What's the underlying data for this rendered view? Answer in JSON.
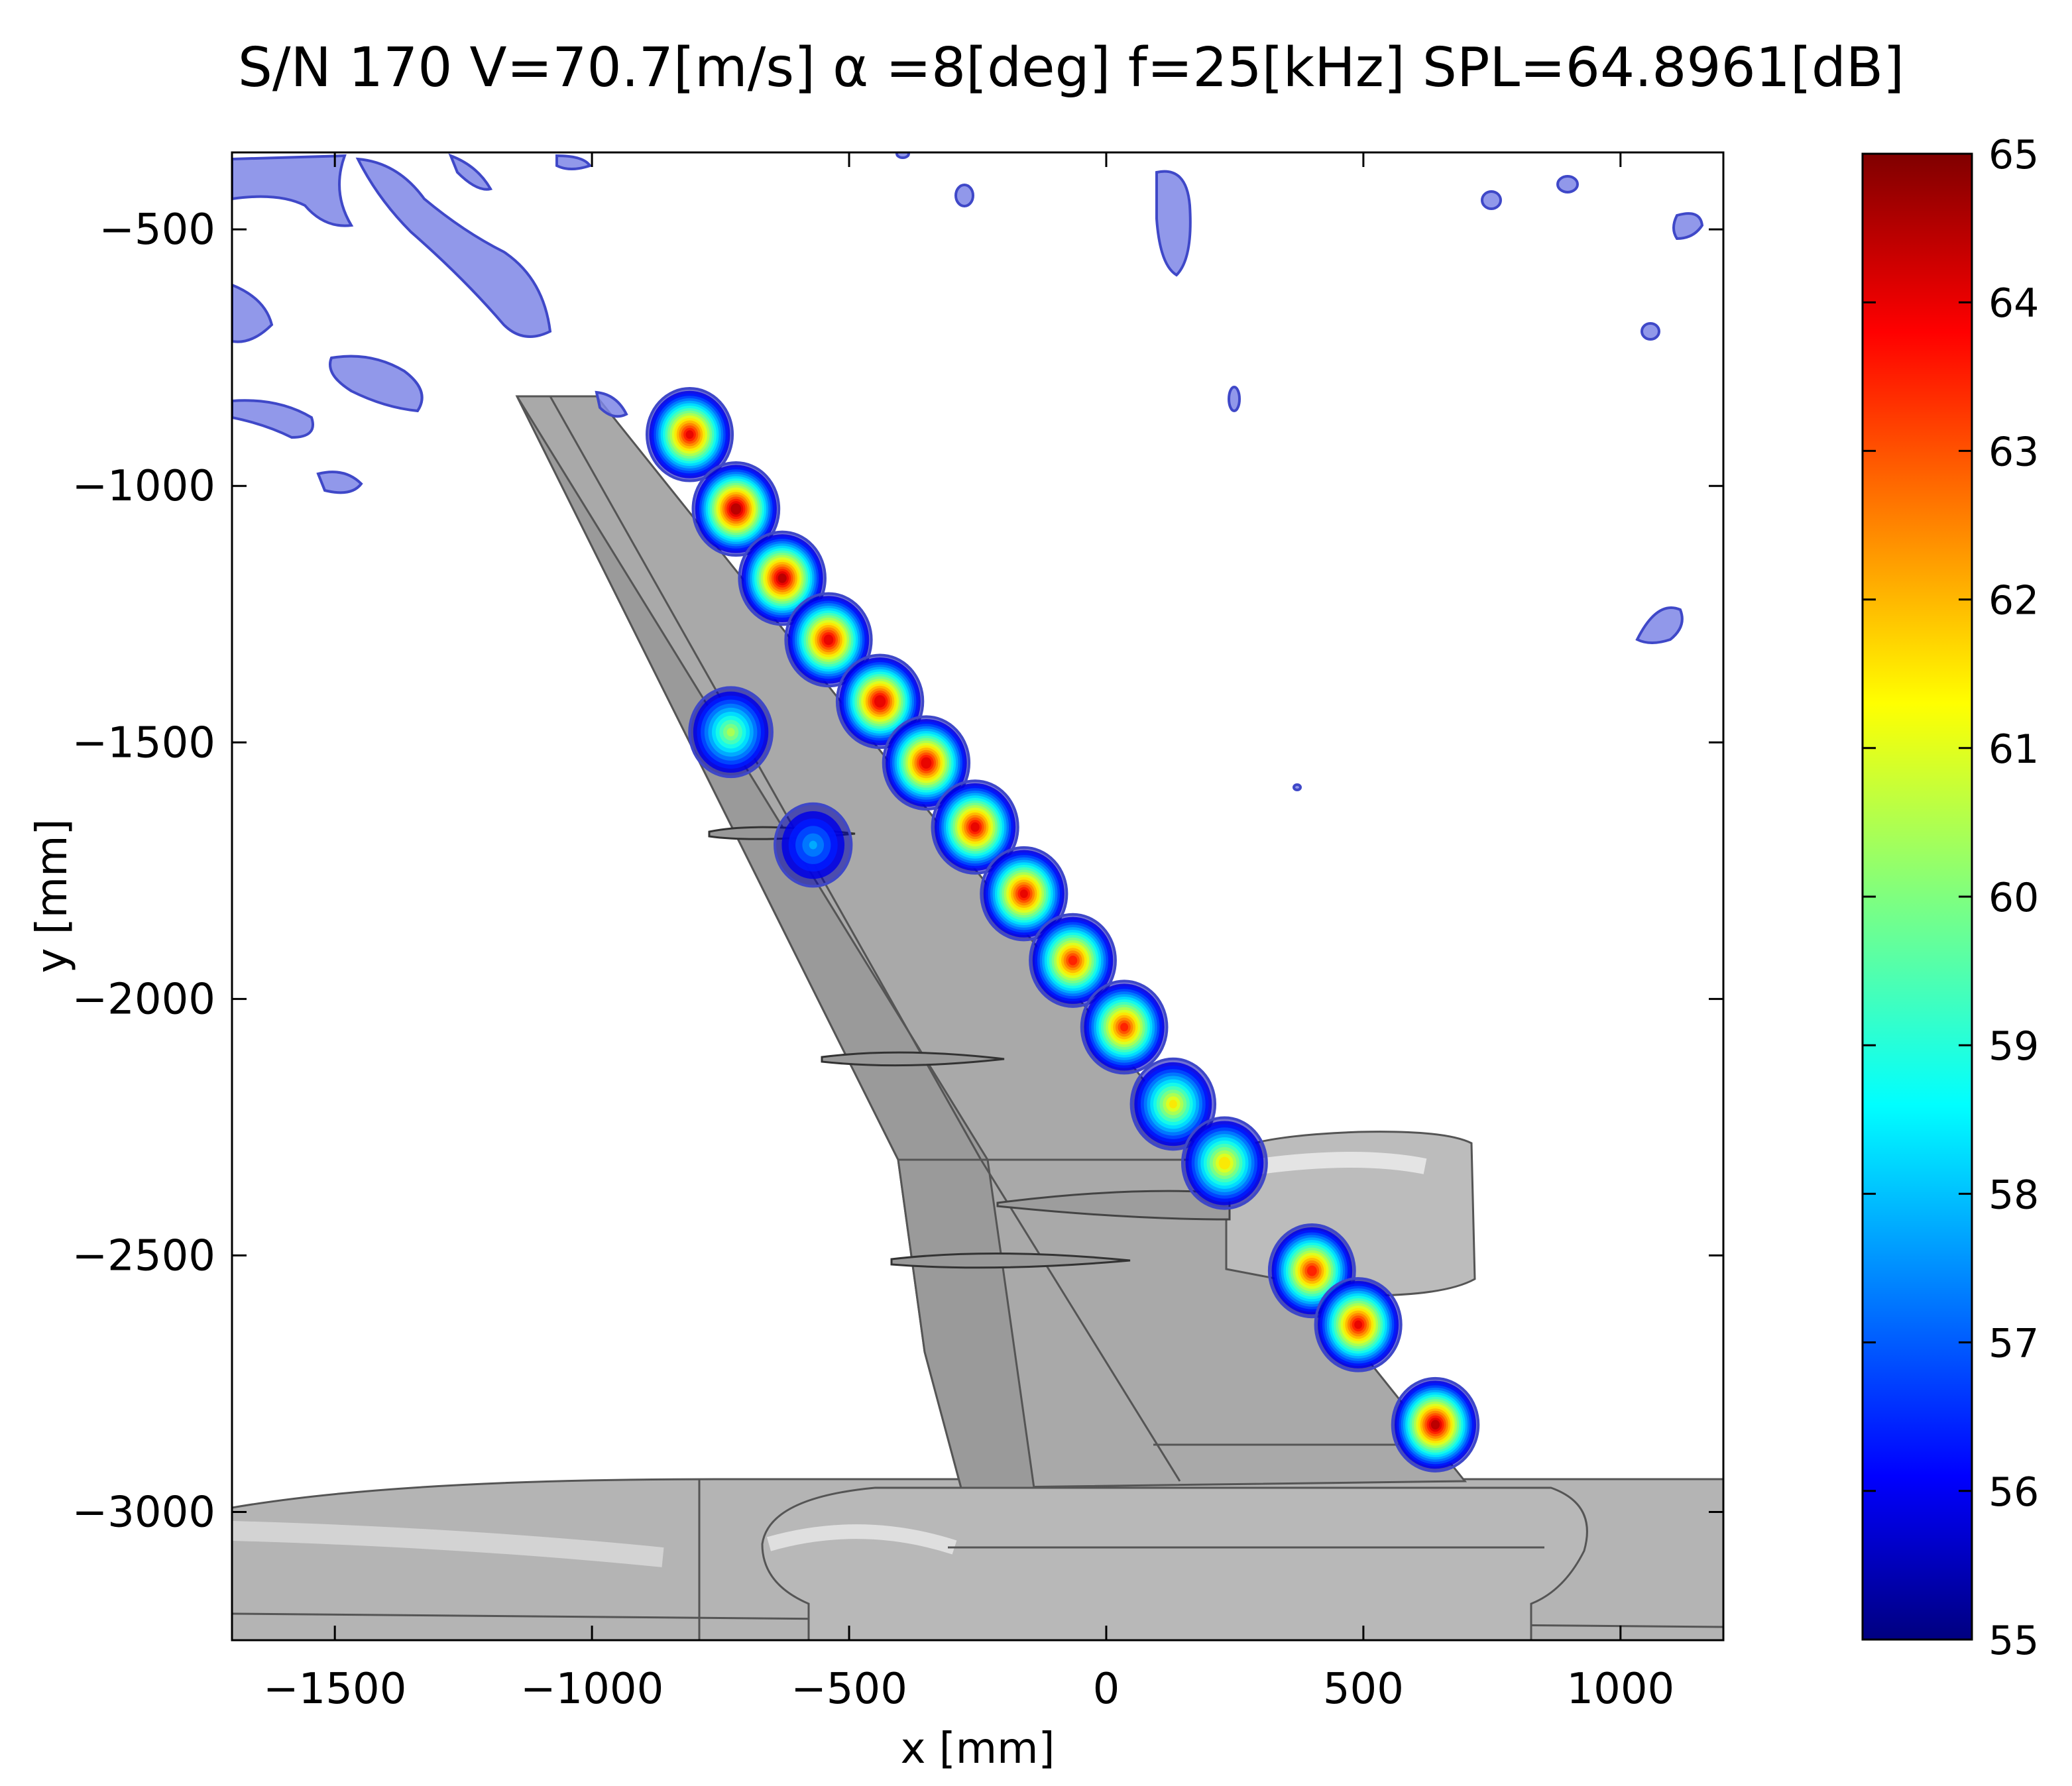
{
  "chart_data": {
    "type": "heatmap",
    "title": "S/N 170  V=70.7[m/s]   α =8[deg]  f=25[kHz]     SPL=64.8961[dB]",
    "xlabel": "x [mm]",
    "ylabel": "y [mm]",
    "xlim": [
      -1700,
      1200
    ],
    "ylim": [
      -3250,
      -350
    ],
    "x_ticks": [
      -1500,
      -1000,
      -500,
      0,
      500,
      1000
    ],
    "x_tick_labels": [
      "−1500",
      "−1000",
      "−500",
      "0",
      "500",
      "1000"
    ],
    "y_ticks": [
      -500,
      -1000,
      -1500,
      -2000,
      -2500,
      -3000
    ],
    "y_tick_labels": [
      "−500",
      "−1000",
      "−1500",
      "−2000",
      "−2500",
      "−3000"
    ],
    "colorbar": {
      "min": 55,
      "max": 65,
      "ticks": [
        55,
        56,
        57,
        58,
        59,
        60,
        61,
        62,
        63,
        64,
        65
      ],
      "tick_labels": [
        "55",
        "56",
        "57",
        "58",
        "59",
        "60",
        "61",
        "62",
        "63",
        "64",
        "65"
      ],
      "unit_in_title": "dB",
      "colormap": "jet"
    },
    "sources": [
      {
        "x": -810,
        "y": -900,
        "level": 64.0
      },
      {
        "x": -720,
        "y": -1045,
        "level": 64.8
      },
      {
        "x": -630,
        "y": -1180,
        "level": 64.6
      },
      {
        "x": -540,
        "y": -1300,
        "level": 64.2
      },
      {
        "x": -440,
        "y": -1420,
        "level": 64.4
      },
      {
        "x": -350,
        "y": -1540,
        "level": 64.3
      },
      {
        "x": -255,
        "y": -1665,
        "level": 64.1
      },
      {
        "x": -160,
        "y": -1795,
        "level": 64.0
      },
      {
        "x": -65,
        "y": -1925,
        "level": 63.6
      },
      {
        "x": 35,
        "y": -2055,
        "level": 63.5
      },
      {
        "x": 130,
        "y": -2205,
        "level": 61.5
      },
      {
        "x": 230,
        "y": -2320,
        "level": 61.8
      },
      {
        "x": 400,
        "y": -2530,
        "level": 63.7
      },
      {
        "x": 490,
        "y": -2635,
        "level": 64.0
      },
      {
        "x": 640,
        "y": -2830,
        "level": 64.6
      },
      {
        "x": -730,
        "y": -1480,
        "level": 60.5
      },
      {
        "x": -570,
        "y": -1700,
        "level": 58.0
      }
    ],
    "background_contours_level": 55.5,
    "colors": {
      "model_surface": "#a9a9a9",
      "model_outline": "#5a5a5a",
      "contour_low": "#7078e0"
    }
  }
}
